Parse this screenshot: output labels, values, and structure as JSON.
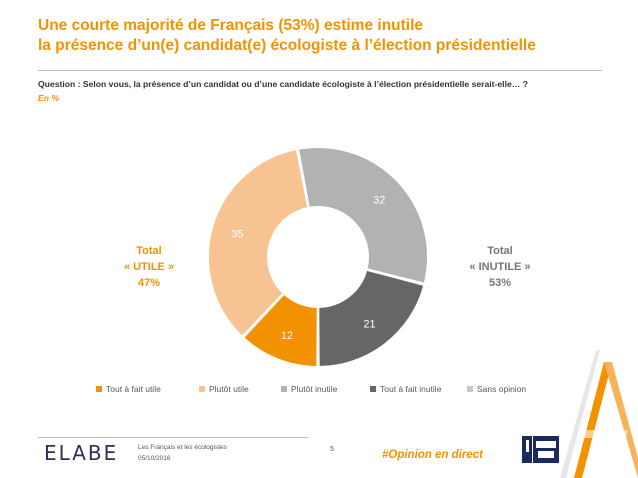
{
  "header": {
    "title_line1": "Une courte majorité de Français (53%) estime inutile",
    "title_line2": "la présence d’un(e) candidat(e) écologiste à l’élection présidentielle",
    "question": "Question : Selon vous, la présence d’un candidat ou d’une candidate écologiste à l’élection présidentielle serait-elle… ?",
    "unit": "En %"
  },
  "totals": {
    "left": {
      "line1": "Total",
      "line2": "« UTILE »",
      "line3": "47%",
      "color": "#f39200"
    },
    "right": {
      "line1": "Total",
      "line2": "« INUTILE »",
      "line3": "53%",
      "color": "#767676"
    }
  },
  "chart_data": {
    "type": "pie",
    "donut": true,
    "categories": [
      "Tout à fait utile",
      "Plutôt utile",
      "Plutôt inutile",
      "Tout à fait inutile",
      "Sans opinion"
    ],
    "values": [
      12,
      35,
      32,
      21,
      0
    ],
    "colors": [
      "#f39200",
      "#f7c393",
      "#b2b2b2",
      "#666666",
      "#c8c8c8"
    ],
    "label_colors": [
      "#ffffff",
      "#ffffff",
      "#ffffff",
      "#ffffff",
      "#ffffff"
    ],
    "legend_position": "bottom"
  },
  "footer": {
    "logo": "ELABE",
    "source": "Les Français et les écologistes",
    "date": "05/10/2016",
    "page": "5",
    "hashtag": "#Opinion en direct"
  },
  "branding": {
    "accent": "#f39200"
  }
}
